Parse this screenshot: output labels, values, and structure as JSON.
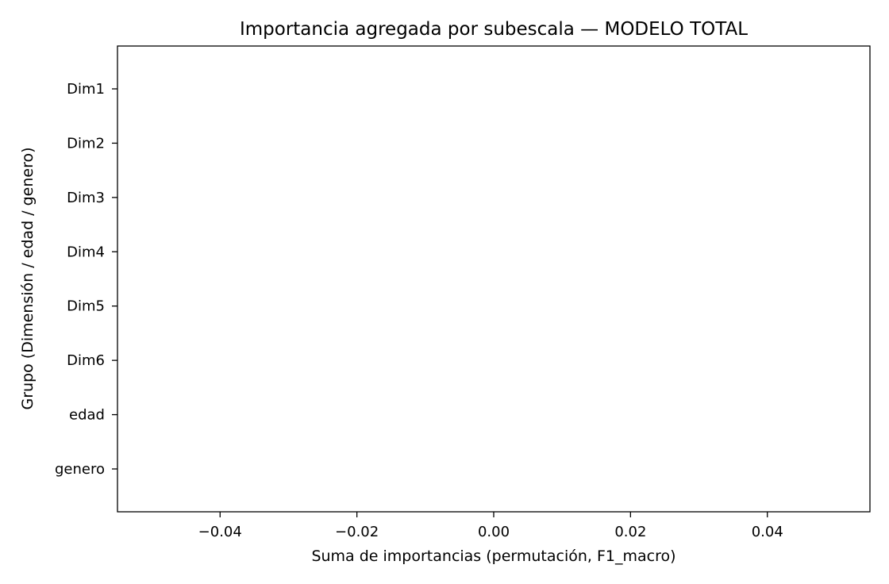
{
  "chart_data": {
    "type": "bar",
    "orientation": "horizontal",
    "title": "Importancia agregada por subescala — MODELO TOTAL",
    "xlabel": "Suma de importancias (permutación, F1_macro)",
    "ylabel": "Grupo (Dimensión / edad / genero)",
    "categories": [
      "Dim1",
      "Dim2",
      "Dim3",
      "Dim4",
      "Dim5",
      "Dim6",
      "edad",
      "genero"
    ],
    "values": [
      0,
      0,
      0,
      0,
      0,
      0,
      0,
      0
    ],
    "xlim": [
      -0.055,
      0.055
    ],
    "xticks": [
      -0.04,
      -0.02,
      0.0,
      0.02,
      0.04
    ],
    "xtick_labels": [
      "−0.04",
      "−0.02",
      "0.00",
      "0.02",
      "0.04"
    ],
    "grid": false,
    "legend": "none",
    "bar_color": "#1f77b4"
  }
}
